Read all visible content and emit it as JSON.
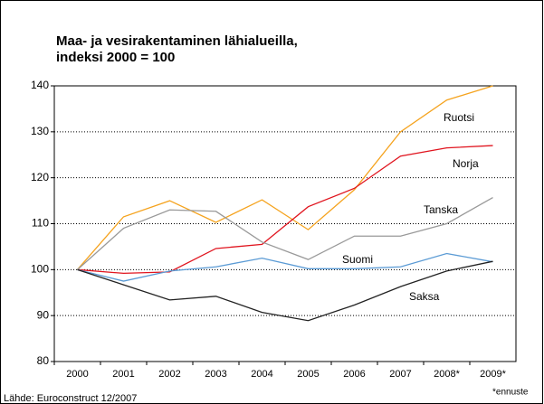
{
  "chart_data": {
    "type": "line",
    "title": [
      "Maa- ja vesirakentaminen lähialueilla,",
      "indeksi 2000 = 100"
    ],
    "categories": [
      "2000",
      "2001",
      "2002",
      "2003",
      "2004",
      "2005",
      "2006",
      "2007",
      "2008*",
      "2009*"
    ],
    "series": [
      {
        "name": "Ruotsi",
        "color": "#f5a31e",
        "values": [
          100,
          111.5,
          115,
          110.3,
          115.2,
          108.7,
          117.4,
          130,
          136.9,
          140
        ]
      },
      {
        "name": "Norja",
        "color": "#e0141e",
        "values": [
          100,
          99.2,
          99.5,
          104.6,
          105.5,
          113.7,
          117.7,
          124.7,
          126.5,
          127
        ]
      },
      {
        "name": "Tanska",
        "color": "#999999",
        "values": [
          100,
          109,
          113,
          112.7,
          106,
          102.2,
          107.3,
          107.3,
          110,
          115.7
        ]
      },
      {
        "name": "Suomi",
        "color": "#5b9bd5",
        "values": [
          100,
          97.5,
          99.7,
          100.6,
          102.5,
          100.2,
          100.2,
          100.6,
          103.5,
          101.7
        ]
      },
      {
        "name": "Saksa",
        "color": "#222222",
        "values": [
          100,
          96.7,
          93.4,
          94.2,
          90.7,
          88.9,
          92.3,
          96.3,
          99.7,
          101.8
        ]
      }
    ],
    "ylim": [
      80,
      140
    ],
    "yticks": [
      80,
      90,
      100,
      110,
      120,
      130,
      140
    ],
    "grid": true,
    "note": "*ennuste",
    "source": "Lähde: Euroconstruct 12/2007"
  }
}
